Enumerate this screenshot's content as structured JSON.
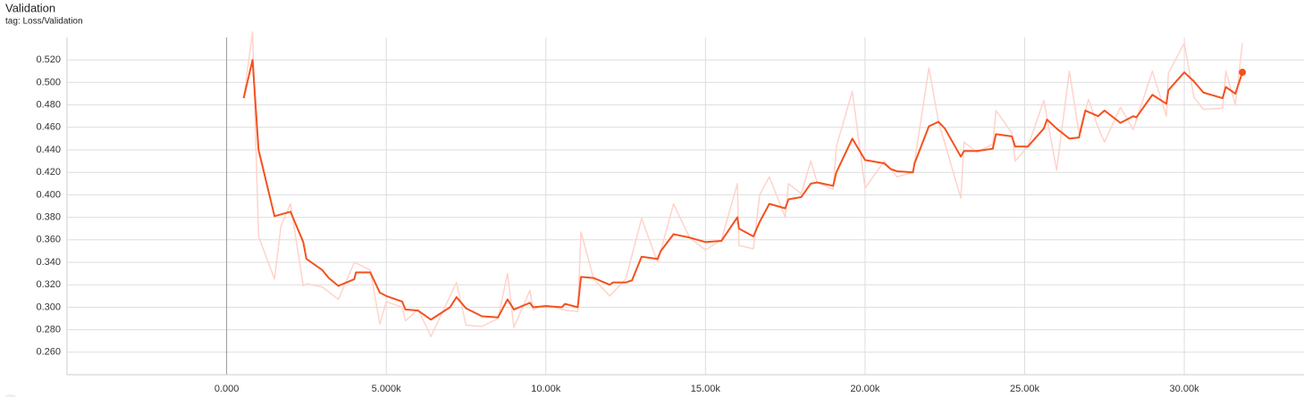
{
  "chart_data": {
    "type": "line",
    "title": "Validation",
    "subtitle": "tag: Loss/Validation",
    "xlim": [
      -5000,
      33750
    ],
    "ylim": [
      0.24,
      0.54
    ],
    "grid": true,
    "xticks": [
      {
        "value": 0,
        "label": "0.000"
      },
      {
        "value": 5000,
        "label": "5.000k"
      },
      {
        "value": 10000,
        "label": "10.00k"
      },
      {
        "value": 15000,
        "label": "15.00k"
      },
      {
        "value": 20000,
        "label": "20.00k"
      },
      {
        "value": 25000,
        "label": "25.00k"
      },
      {
        "value": 30000,
        "label": "30.00k"
      }
    ],
    "yticks": [
      {
        "value": 0.26,
        "label": "0.260"
      },
      {
        "value": 0.28,
        "label": "0.280"
      },
      {
        "value": 0.3,
        "label": "0.300"
      },
      {
        "value": 0.32,
        "label": "0.320"
      },
      {
        "value": 0.34,
        "label": "0.340"
      },
      {
        "value": 0.36,
        "label": "0.360"
      },
      {
        "value": 0.38,
        "label": "0.380"
      },
      {
        "value": 0.4,
        "label": "0.400"
      },
      {
        "value": 0.42,
        "label": "0.420"
      },
      {
        "value": 0.44,
        "label": "0.440"
      },
      {
        "value": 0.46,
        "label": "0.460"
      },
      {
        "value": 0.48,
        "label": "0.480"
      },
      {
        "value": 0.5,
        "label": "0.500"
      },
      {
        "value": 0.52,
        "label": "0.520"
      }
    ],
    "series": [
      {
        "color": "#ffd3cb",
        "x": [
          532,
          812,
          1000,
          1500,
          1700,
          2000,
          2400,
          2500,
          3000,
          3500,
          4000,
          4500,
          4800,
          5000,
          5500,
          5600,
          6000,
          6400,
          7000,
          7200,
          7500,
          8000,
          8500,
          8800,
          9000,
          9500,
          9600,
          10000,
          10500,
          11000,
          11100,
          11500,
          12000,
          12500,
          13000,
          13500,
          14000,
          14500,
          15000,
          15500,
          16000,
          16050,
          16500,
          16700,
          17000,
          17500,
          17600,
          18000,
          18300,
          18500,
          19000,
          19100,
          19600,
          20000,
          20600,
          21000,
          21500,
          22000,
          22300,
          23000,
          23100,
          23500,
          24000,
          24100,
          24600,
          24700,
          25100,
          25600,
          26000,
          26400,
          26700,
          27000,
          27300,
          27500,
          28000,
          28400,
          29000,
          29440,
          29500,
          30000,
          30300,
          30600,
          31200,
          31300,
          31600,
          31820
        ],
        "values": [
          0.486,
          0.545,
          0.363,
          0.325,
          0.372,
          0.392,
          0.319,
          0.321,
          0.318,
          0.307,
          0.34,
          0.333,
          0.285,
          0.305,
          0.3,
          0.288,
          0.298,
          0.274,
          0.31,
          0.322,
          0.284,
          0.283,
          0.29,
          0.33,
          0.282,
          0.315,
          0.298,
          0.302,
          0.298,
          0.296,
          0.367,
          0.325,
          0.31,
          0.325,
          0.379,
          0.34,
          0.392,
          0.362,
          0.351,
          0.36,
          0.41,
          0.355,
          0.352,
          0.4,
          0.416,
          0.38,
          0.41,
          0.401,
          0.43,
          0.411,
          0.405,
          0.443,
          0.492,
          0.406,
          0.43,
          0.416,
          0.42,
          0.513,
          0.465,
          0.397,
          0.447,
          0.438,
          0.445,
          0.475,
          0.455,
          0.43,
          0.443,
          0.484,
          0.422,
          0.51,
          0.455,
          0.485,
          0.46,
          0.447,
          0.478,
          0.458,
          0.51,
          0.47,
          0.508,
          0.535,
          0.487,
          0.476,
          0.477,
          0.51,
          0.48,
          0.535
        ]
      },
      {
        "color": "#f4511e",
        "x": [
          532,
          812,
          1000,
          1500,
          2000,
          2400,
          2500,
          3000,
          3200,
          3500,
          4000,
          4050,
          4500,
          4800,
          5000,
          5500,
          5600,
          6000,
          6400,
          7000,
          7200,
          7500,
          8000,
          8500,
          8800,
          9000,
          9500,
          9600,
          10000,
          10500,
          10600,
          11000,
          11100,
          11500,
          12000,
          12100,
          12500,
          12700,
          13000,
          13500,
          13600,
          14000,
          14500,
          15000,
          15500,
          16000,
          16050,
          16500,
          16700,
          17000,
          17500,
          17600,
          18000,
          18300,
          18500,
          19000,
          19100,
          19600,
          20000,
          20600,
          20800,
          21000,
          21500,
          21550,
          22000,
          22300,
          22500,
          23000,
          23100,
          23500,
          24000,
          24100,
          24600,
          24700,
          25100,
          25600,
          25700,
          26000,
          26400,
          26700,
          26900,
          27300,
          27500,
          28000,
          28400,
          28500,
          29000,
          29440,
          29500,
          30000,
          30300,
          30600,
          31200,
          31300,
          31600,
          31820
        ],
        "values": [
          0.486,
          0.52,
          0.44,
          0.381,
          0.385,
          0.358,
          0.343,
          0.333,
          0.326,
          0.319,
          0.325,
          0.331,
          0.331,
          0.313,
          0.31,
          0.305,
          0.298,
          0.297,
          0.289,
          0.3,
          0.309,
          0.299,
          0.292,
          0.291,
          0.307,
          0.298,
          0.304,
          0.3,
          0.301,
          0.3,
          0.303,
          0.3,
          0.327,
          0.326,
          0.32,
          0.322,
          0.322,
          0.324,
          0.345,
          0.343,
          0.35,
          0.365,
          0.362,
          0.358,
          0.359,
          0.38,
          0.37,
          0.363,
          0.376,
          0.392,
          0.388,
          0.396,
          0.398,
          0.41,
          0.411,
          0.408,
          0.42,
          0.45,
          0.431,
          0.428,
          0.423,
          0.421,
          0.42,
          0.428,
          0.461,
          0.465,
          0.459,
          0.434,
          0.439,
          0.439,
          0.441,
          0.454,
          0.452,
          0.443,
          0.443,
          0.459,
          0.467,
          0.459,
          0.45,
          0.451,
          0.475,
          0.47,
          0.475,
          0.464,
          0.47,
          0.469,
          0.489,
          0.481,
          0.493,
          0.509,
          0.501,
          0.491,
          0.486,
          0.496,
          0.49,
          0.509
        ]
      }
    ]
  }
}
